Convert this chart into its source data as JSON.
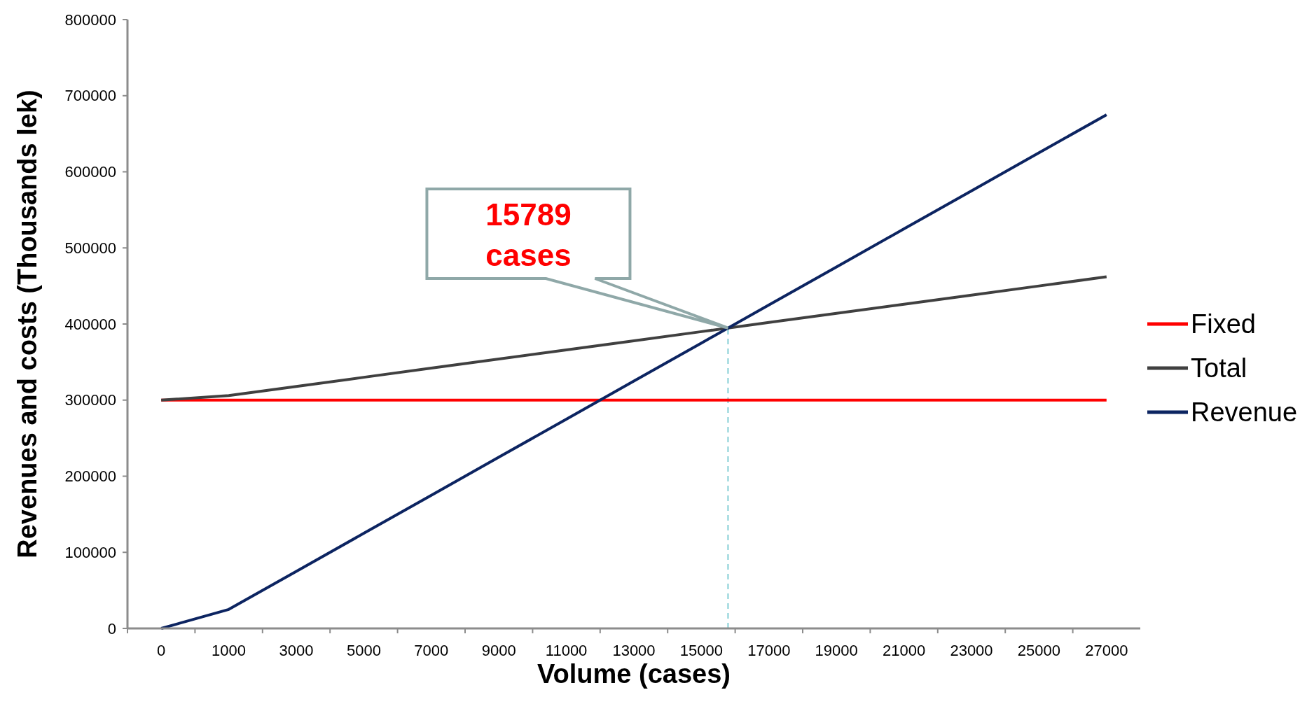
{
  "chart_data": {
    "type": "line",
    "xlabel": "Volume (cases)",
    "ylabel": "Revenues and costs (Thousands lek)",
    "categories": [
      "0",
      "1000",
      "3000",
      "5000",
      "7000",
      "9000",
      "11000",
      "13000",
      "15000",
      "17000",
      "19000",
      "21000",
      "23000",
      "25000",
      "27000"
    ],
    "series": [
      {
        "name": "Fixed",
        "color": "#ff0000",
        "values": [
          300000,
          300000,
          300000,
          300000,
          300000,
          300000,
          300000,
          300000,
          300000,
          300000,
          300000,
          300000,
          300000,
          300000,
          300000
        ]
      },
      {
        "name": "Total",
        "color": "#404040",
        "values": [
          300000,
          306000,
          318000,
          330000,
          342000,
          354000,
          366000,
          378000,
          390000,
          402000,
          414000,
          426000,
          438000,
          450000,
          462000
        ]
      },
      {
        "name": "Revenue",
        "color": "#0c2461",
        "values": [
          0,
          25000,
          75000,
          125000,
          175000,
          225000,
          275000,
          325000,
          375000,
          425000,
          475000,
          525000,
          575000,
          625000,
          675000
        ]
      }
    ],
    "ylim": [
      0,
      800000
    ],
    "yticks": [
      0,
      100000,
      200000,
      300000,
      400000,
      500000,
      600000,
      700000,
      800000
    ],
    "annotations": [
      "15789 cases"
    ],
    "legend": "right",
    "grid": false,
    "marker": "none",
    "line_style": "solid"
  }
}
